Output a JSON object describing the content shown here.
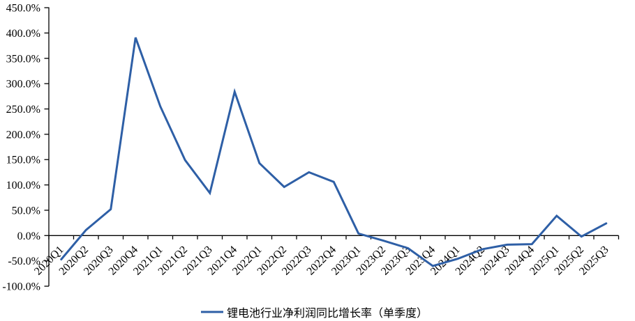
{
  "chart_data": {
    "type": "line",
    "title": "",
    "categories": [
      "2020Q1",
      "2020Q2",
      "2020Q3",
      "2020Q4",
      "2021Q1",
      "2021Q2",
      "2021Q3",
      "2021Q4",
      "2022Q1",
      "2022Q2",
      "2022Q3",
      "2022Q4",
      "2023Q1",
      "2023Q2",
      "2023Q3",
      "2023Q4",
      "2024Q1",
      "2024Q2",
      "2024Q3",
      "2024Q4",
      "2025Q1",
      "2025Q2",
      "2025Q3"
    ],
    "series": [
      {
        "name": "锂电池行业净利润同比增长率（单季度）",
        "values": [
          -47,
          11,
          52,
          391,
          255,
          149,
          84,
          284,
          143,
          96,
          125,
          106,
          4,
          -10,
          -25,
          -60,
          -46,
          -27,
          -18,
          -17,
          39,
          -2,
          24
        ]
      }
    ],
    "xlabel": "",
    "ylabel": "",
    "ylim": [
      -100,
      450
    ],
    "ytick_step": 50,
    "ytick_suffix": "%",
    "grid": false,
    "legend_position": "bottom",
    "line_color": "#2E5FA6",
    "axis_color": "#000000"
  }
}
